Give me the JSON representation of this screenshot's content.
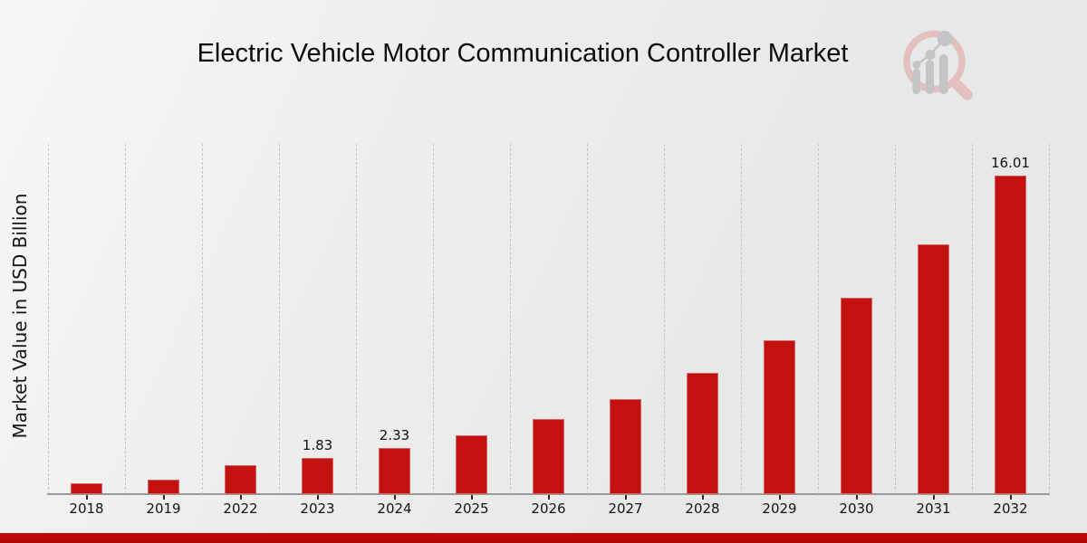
{
  "chart_data": {
    "type": "bar",
    "title": "Electric Vehicle Motor Communication Controller Market",
    "xlabel": "",
    "ylabel": "Market Value in USD Billion",
    "categories": [
      "2018",
      "2019",
      "2022",
      "2023",
      "2024",
      "2025",
      "2026",
      "2027",
      "2028",
      "2029",
      "2030",
      "2031",
      "2032"
    ],
    "values": [
      0.55,
      0.72,
      1.45,
      1.83,
      2.33,
      2.95,
      3.77,
      4.78,
      6.08,
      7.74,
      9.85,
      12.55,
      16.01
    ],
    "value_labels": [
      "",
      "",
      "",
      "1.83",
      "2.33",
      "",
      "",
      "",
      "",
      "",
      "",
      "",
      "16.01"
    ],
    "ylim": [
      0,
      17.6
    ],
    "grid": "vertical-dashed",
    "legend": "none",
    "bar_color": "#c31110",
    "axis_line_color": "#9a9a9a",
    "tick_color": "#2a2a2a"
  },
  "branding": {
    "logo_name": "market-research-future-magnifier-logo",
    "ring_color": "#e3c0c0",
    "element_color": "#c4c4c4"
  },
  "footer": {
    "accent_color": "#b00404"
  }
}
